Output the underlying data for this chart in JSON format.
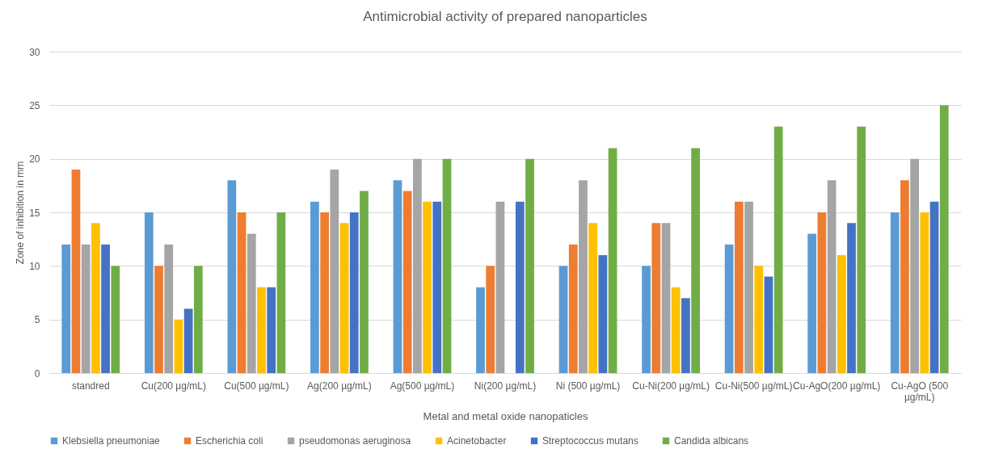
{
  "chart_data": {
    "type": "bar",
    "title": "Antimicrobial activity of prepared nanoparticles",
    "xlabel": "Metal and metal oxide nanopaticles",
    "ylabel": "Zone of inhibition in mm",
    "categories": [
      "standred",
      "Cu(200 µg/mL)",
      "Cu(500 µg/mL)",
      "Ag(200 µg/mL)",
      "Ag(500 µg/mL)",
      "Ni(200 µg/mL)",
      "Ni (500 µg/mL)",
      "Cu-Ni(200 µg/mL)",
      "Cu-Ni(500 µg/mL)",
      "Cu-AgO(200 µg/mL)",
      "Cu-AgO (500 µg/mL)"
    ],
    "series": [
      {
        "name": "Klebsiella pneumoniae",
        "color": "#5b9bd5",
        "values": [
          12,
          15,
          18,
          16,
          18,
          8,
          10,
          10,
          12,
          13,
          15
        ]
      },
      {
        "name": "Escherichia coli",
        "color": "#ed7d31",
        "values": [
          19,
          10,
          15,
          15,
          17,
          10,
          12,
          14,
          16,
          15,
          18
        ]
      },
      {
        "name": "pseudomonas aeruginosa",
        "color": "#a5a5a5",
        "values": [
          12,
          12,
          13,
          19,
          20,
          16,
          18,
          14,
          16,
          18,
          20
        ]
      },
      {
        "name": "Acinetobacter",
        "color": "#ffc000",
        "values": [
          14,
          5,
          8,
          14,
          16,
          null,
          14,
          8,
          10,
          11,
          15
        ]
      },
      {
        "name": "Streptococcus mutans",
        "color": "#4472c4",
        "values": [
          12,
          6,
          8,
          15,
          16,
          16,
          11,
          7,
          9,
          14,
          16
        ]
      },
      {
        "name": "Candida albicans",
        "color": "#70ad47",
        "values": [
          10,
          10,
          15,
          17,
          20,
          20,
          21,
          21,
          23,
          23,
          25
        ]
      }
    ],
    "ylim": [
      0,
      30
    ],
    "yticks": [
      0,
      5,
      10,
      15,
      20,
      25,
      30
    ],
    "grid": "y",
    "legend": "bottom"
  }
}
